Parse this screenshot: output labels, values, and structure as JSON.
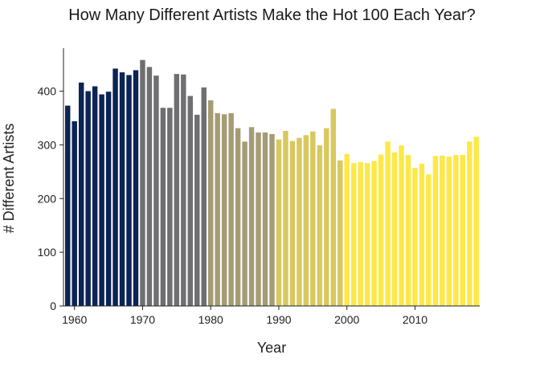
{
  "chart_data": {
    "type": "bar",
    "title": "How Many Different Artists Make the Hot 100 Each Year?",
    "xlabel": "Year",
    "ylabel": "# Different Artists",
    "x": [
      1959,
      1960,
      1961,
      1962,
      1963,
      1964,
      1965,
      1966,
      1967,
      1968,
      1969,
      1970,
      1971,
      1972,
      1973,
      1974,
      1975,
      1976,
      1977,
      1978,
      1979,
      1980,
      1981,
      1982,
      1983,
      1984,
      1985,
      1986,
      1987,
      1988,
      1989,
      1990,
      1991,
      1992,
      1993,
      1994,
      1995,
      1996,
      1997,
      1998,
      1999,
      2000,
      2001,
      2002,
      2003,
      2004,
      2005,
      2006,
      2007,
      2008,
      2009,
      2010,
      2011,
      2012,
      2013,
      2014,
      2015,
      2016,
      2017,
      2018,
      2019
    ],
    "values": [
      373,
      344,
      416,
      400,
      409,
      394,
      399,
      442,
      435,
      430,
      439,
      458,
      445,
      429,
      369,
      369,
      432,
      431,
      391,
      356,
      407,
      383,
      359,
      357,
      359,
      331,
      306,
      333,
      323,
      323,
      320,
      310,
      326,
      307,
      313,
      318,
      325,
      299,
      331,
      367,
      271,
      283,
      266,
      268,
      266,
      270,
      282,
      306,
      286,
      299,
      281,
      257,
      265,
      245,
      279,
      280,
      278,
      281,
      281,
      306,
      315
    ],
    "ylim": [
      0,
      480
    ],
    "xlim": [
      1958.5,
      2019.5
    ],
    "yticks": [
      0,
      100,
      200,
      300,
      400
    ],
    "xticks": [
      1960,
      1970,
      1980,
      1990,
      2000,
      2010
    ],
    "bar_colors": [
      "#0b2454",
      "#3d4e77",
      "#6f6f72",
      "#a59c75",
      "#d8c85e",
      "#fde847"
    ],
    "color_groups": [
      "1958-1969",
      "1970-1979",
      "1980-1989",
      "1990-1999",
      "2000-2009",
      "2010-2019"
    ],
    "legend": "none",
    "grid": false
  }
}
